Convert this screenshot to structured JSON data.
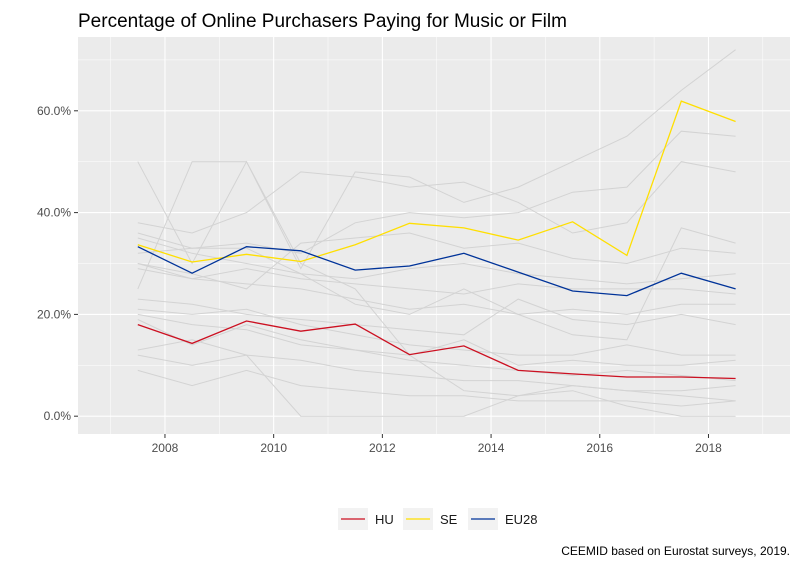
{
  "chart_data": {
    "type": "line",
    "title": "Percentage of Online Purchasers Paying for Music or Film",
    "caption": "CEEMID based on Eurostat surveys, 2019.",
    "xlabel": "",
    "ylabel": "",
    "x": [
      2007.5,
      2008.5,
      2009.5,
      2010.5,
      2011.5,
      2012.5,
      2013.5,
      2014.5,
      2015.5,
      2016.5,
      2017.5,
      2018.5
    ],
    "xlim": [
      2006.4,
      2019.5
    ],
    "ylim": [
      -0.035,
      0.745
    ],
    "x_ticks": [
      2008,
      2010,
      2012,
      2014,
      2016,
      2018
    ],
    "y_ticks": [
      0.0,
      0.2,
      0.4,
      0.6
    ],
    "y_tick_labels": [
      "0.0%",
      "20.0%",
      "40.0%",
      "60.0%"
    ],
    "x_tick_labels": [
      "2008",
      "2010",
      "2012",
      "2014",
      "2016",
      "2018"
    ],
    "grid": true,
    "legend_position": "bottom",
    "series": [
      {
        "name": "HU",
        "color": "#cc1021",
        "values": [
          0.18,
          0.143,
          0.187,
          0.167,
          0.181,
          0.121,
          0.138,
          0.09,
          0.083,
          0.077,
          0.077,
          0.074
        ]
      },
      {
        "name": "SE",
        "color": "#ffdf00",
        "values": [
          0.337,
          0.303,
          0.318,
          0.304,
          0.337,
          0.379,
          0.37,
          0.346,
          0.382,
          0.316,
          0.619,
          0.579
        ]
      },
      {
        "name": "EU28",
        "color": "#003399",
        "values": [
          0.333,
          0.281,
          0.333,
          0.325,
          0.287,
          0.295,
          0.32,
          0.283,
          0.246,
          0.237,
          0.281,
          0.25
        ]
      }
    ],
    "background_series_color": "#d3d3d3",
    "background_series": [
      [
        0.5,
        0.3,
        0.5,
        0.29,
        0.48,
        0.47,
        0.42,
        0.45,
        0.5,
        0.55,
        0.64,
        0.72
      ],
      [
        0.38,
        0.36,
        0.4,
        0.48,
        0.47,
        0.45,
        0.46,
        0.42,
        0.36,
        0.38,
        0.5,
        0.48
      ],
      [
        0.36,
        0.33,
        0.34,
        0.32,
        0.38,
        0.4,
        0.39,
        0.4,
        0.44,
        0.45,
        0.56,
        0.55
      ],
      [
        0.3,
        0.28,
        0.25,
        0.34,
        0.35,
        0.36,
        0.33,
        0.34,
        0.31,
        0.3,
        0.33,
        0.32
      ],
      [
        0.32,
        0.33,
        0.33,
        0.28,
        0.27,
        0.29,
        0.3,
        0.28,
        0.27,
        0.26,
        0.27,
        0.28
      ],
      [
        0.29,
        0.27,
        0.29,
        0.27,
        0.26,
        0.25,
        0.24,
        0.26,
        0.25,
        0.25,
        0.25,
        0.24
      ],
      [
        0.3,
        0.27,
        0.26,
        0.25,
        0.23,
        0.21,
        0.22,
        0.2,
        0.21,
        0.2,
        0.22,
        0.22
      ],
      [
        0.23,
        0.22,
        0.2,
        0.19,
        0.18,
        0.17,
        0.16,
        0.23,
        0.19,
        0.18,
        0.2,
        0.18
      ],
      [
        0.21,
        0.2,
        0.21,
        0.18,
        0.16,
        0.14,
        0.13,
        0.12,
        0.12,
        0.14,
        0.12,
        0.12
      ],
      [
        0.19,
        0.14,
        0.18,
        0.15,
        0.13,
        0.11,
        0.1,
        0.09,
        0.08,
        0.09,
        0.08,
        0.07
      ],
      [
        0.12,
        0.1,
        0.12,
        0.11,
        0.09,
        0.08,
        0.07,
        0.07,
        0.06,
        0.05,
        0.05,
        0.06
      ],
      [
        0.09,
        0.06,
        0.09,
        0.06,
        0.05,
        0.04,
        0.04,
        0.03,
        0.03,
        0.03,
        0.02,
        0.03
      ],
      [
        0.13,
        0.15,
        0.12,
        0.0,
        0.0,
        0.0,
        0.0,
        0.04,
        0.05,
        0.02,
        0.0,
        0.0
      ],
      [
        0.25,
        0.5,
        0.5,
        0.3,
        0.25,
        0.12,
        0.05,
        0.04,
        0.06,
        0.05,
        0.04,
        0.03
      ],
      [
        0.35,
        0.32,
        0.3,
        0.28,
        0.22,
        0.2,
        0.25,
        0.2,
        0.16,
        0.15,
        0.37,
        0.34
      ],
      [
        0.2,
        0.18,
        0.17,
        0.14,
        0.13,
        0.12,
        0.15,
        0.1,
        0.11,
        0.1,
        0.1,
        0.11
      ]
    ],
    "legend": [
      {
        "label": "HU",
        "color": "#cc1021"
      },
      {
        "label": "SE",
        "color": "#ffdf00"
      },
      {
        "label": "EU28",
        "color": "#003399"
      }
    ]
  }
}
